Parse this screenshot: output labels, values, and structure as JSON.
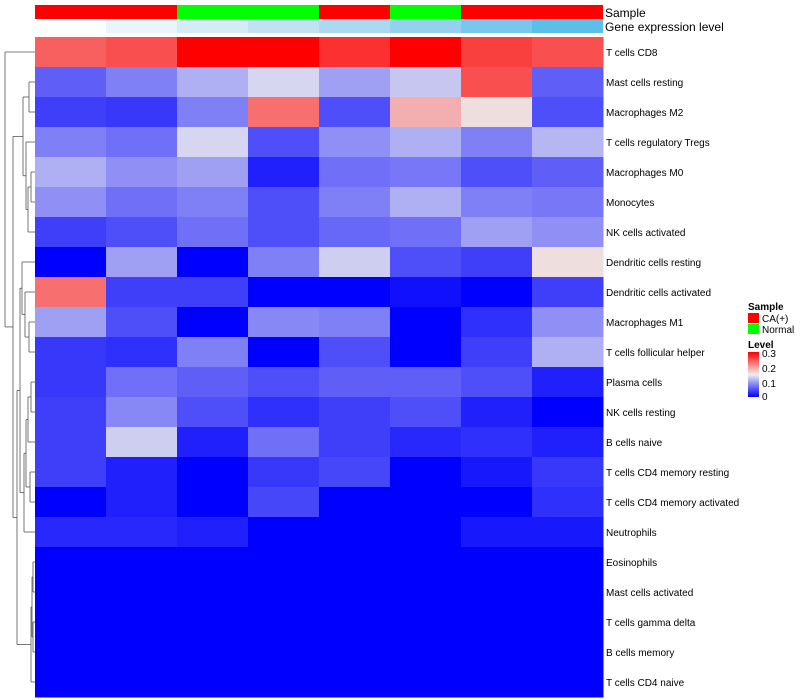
{
  "chart_data": {
    "type": "heatmap",
    "title": "",
    "annotation_tracks": [
      {
        "label": "Sample",
        "values": [
          "CA(+)",
          "CA(+)",
          "Normal",
          "Normal",
          "CA(+)",
          "Normal",
          "CA(+)",
          "CA(+)"
        ]
      },
      {
        "label": "Gene expression level",
        "values": [
          0.02,
          0.06,
          0.1,
          0.14,
          0.18,
          0.22,
          0.26,
          0.3
        ]
      }
    ],
    "columns": [
      "",
      "",
      "",
      "",
      "",
      "",
      "",
      ""
    ],
    "rows": [
      "T cells CD8",
      "Mast cells resting",
      "Macrophages M2",
      "T cells regulatory  Tregs",
      "Macrophages M0",
      "Monocytes",
      "NK cells activated",
      "Dendritic cells resting",
      "Dendritic cells activated",
      "Macrophages M1",
      "T cells follicular helper",
      "Plasma cells",
      "NK cells resting",
      "B cells naive",
      "T cells CD4 memory resting",
      "T cells CD4 memory activated",
      "Neutrophils",
      "Eosinophils",
      "Mast cells activated",
      "T cells gamma delta",
      "B cells memory",
      "T cells CD4 naive"
    ],
    "values": [
      [
        0.24,
        0.25,
        0.3,
        0.3,
        0.27,
        0.3,
        0.26,
        0.25
      ],
      [
        0.06,
        0.08,
        0.11,
        0.135,
        0.1,
        0.125,
        0.25,
        0.06
      ],
      [
        0.04,
        0.035,
        0.08,
        0.23,
        0.05,
        0.19,
        0.16,
        0.05
      ],
      [
        0.08,
        0.07,
        0.135,
        0.05,
        0.09,
        0.11,
        0.08,
        0.115
      ],
      [
        0.11,
        0.09,
        0.1,
        0.02,
        0.07,
        0.075,
        0.05,
        0.06
      ],
      [
        0.09,
        0.07,
        0.08,
        0.05,
        0.08,
        0.11,
        0.08,
        0.075
      ],
      [
        0.04,
        0.05,
        0.07,
        0.05,
        0.065,
        0.07,
        0.1,
        0.09
      ],
      [
        0.0,
        0.1,
        0.0,
        0.08,
        0.13,
        0.05,
        0.04,
        0.16
      ],
      [
        0.23,
        0.04,
        0.04,
        0.0,
        0.0,
        0.01,
        0.0,
        0.04
      ],
      [
        0.1,
        0.05,
        0.0,
        0.085,
        0.08,
        0.0,
        0.03,
        0.09
      ],
      [
        0.035,
        0.03,
        0.08,
        0.0,
        0.05,
        0.0,
        0.04,
        0.11
      ],
      [
        0.035,
        0.07,
        0.06,
        0.05,
        0.06,
        0.06,
        0.05,
        0.02
      ],
      [
        0.04,
        0.085,
        0.05,
        0.03,
        0.04,
        0.05,
        0.02,
        0.0
      ],
      [
        0.04,
        0.13,
        0.02,
        0.07,
        0.04,
        0.025,
        0.03,
        0.02
      ],
      [
        0.04,
        0.02,
        0.0,
        0.035,
        0.045,
        0.0,
        0.015,
        0.035
      ],
      [
        0.0,
        0.02,
        0.0,
        0.045,
        0.0,
        0.0,
        0.0,
        0.03
      ],
      [
        0.025,
        0.025,
        0.02,
        0.0,
        0.0,
        0.0,
        0.015,
        0.015
      ],
      [
        0.0,
        0.0,
        0.0,
        0.0,
        0.0,
        0.0,
        0.0,
        0.0
      ],
      [
        0.0,
        0.0,
        0.0,
        0.0,
        0.0,
        0.0,
        0.0,
        0.0
      ],
      [
        0.0,
        0.0,
        0.0,
        0.0,
        0.0,
        0.0,
        0.0,
        0.0
      ],
      [
        0.0,
        0.0,
        0.0,
        0.0,
        0.0,
        0.0,
        0.0,
        0.0
      ],
      [
        0.0,
        0.0,
        0.0,
        0.0,
        0.0,
        0.0,
        0.0,
        0.0
      ]
    ],
    "color_scale": {
      "min": 0,
      "mid": 0.15,
      "max": 0.3,
      "colors": [
        "#0000ff",
        "#eeeeee",
        "#ff0000"
      ]
    },
    "legend": {
      "sample_title": "Sample",
      "sample_entries": [
        {
          "label": "CA(+)",
          "color": "#ff0000"
        },
        {
          "label": "Normal",
          "color": "#00ff00"
        }
      ],
      "level_title": "Level",
      "level_ticks": [
        "0.3",
        "0.2",
        "0.1",
        "0"
      ]
    },
    "expression_track_colors": [
      "#ffffff",
      "#eaf4fb",
      "#d5ebf6",
      "#c0e2f3",
      "#abdaf0",
      "#95d1ee",
      "#79c7ec",
      "#5bbfe9"
    ],
    "dendrogram": "row",
    "grid": false
  }
}
